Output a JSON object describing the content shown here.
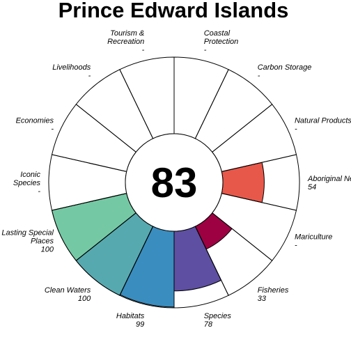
{
  "chart_data": {
    "type": "flower",
    "title": "Prince Edward Islands",
    "center_score": "83",
    "max_value": 100,
    "background_color": "#ffffff",
    "outline_color": "#000000",
    "petals": [
      {
        "name": [
          "Fisheries"
        ],
        "value_label": "33",
        "value": 33,
        "color": "#9e0142"
      },
      {
        "name": [
          "Mariculture"
        ],
        "value_label": "-",
        "value": null,
        "color": "#ffffff"
      },
      {
        "name": [
          "Aboriginal Needs"
        ],
        "value_label": "54",
        "value": 54,
        "color": "#e8584a"
      },
      {
        "name": [
          "Natural Products"
        ],
        "value_label": "-",
        "value": null,
        "color": "#ffffff"
      },
      {
        "name": [
          "Carbon Storage"
        ],
        "value_label": "-",
        "value": null,
        "color": "#ffffff"
      },
      {
        "name": [
          "Coastal",
          "Protection"
        ],
        "value_label": "-",
        "value": null,
        "color": "#ffffff"
      },
      {
        "name": [
          "Tourism &",
          "Recreation"
        ],
        "value_label": "-",
        "value": null,
        "color": "#ffffff"
      },
      {
        "name": [
          "Livelihoods"
        ],
        "value_label": "-",
        "value": null,
        "color": "#ffffff"
      },
      {
        "name": [
          "Economies"
        ],
        "value_label": "-",
        "value": null,
        "color": "#ffffff"
      },
      {
        "name": [
          "Iconic",
          "Species"
        ],
        "value_label": "-",
        "value": null,
        "color": "#ffffff"
      },
      {
        "name": [
          "Lasting Special",
          "Places"
        ],
        "value_label": "100",
        "value": 100,
        "color": "#74c9a4"
      },
      {
        "name": [
          "Clean Waters"
        ],
        "value_label": "100",
        "value": 100,
        "color": "#57a9b0"
      },
      {
        "name": [
          "Habitats"
        ],
        "value_label": "99",
        "value": 99,
        "color": "#3a8dbf"
      },
      {
        "name": [
          "Species"
        ],
        "value_label": "78",
        "value": 78,
        "color": "#5e4fa2"
      }
    ]
  }
}
